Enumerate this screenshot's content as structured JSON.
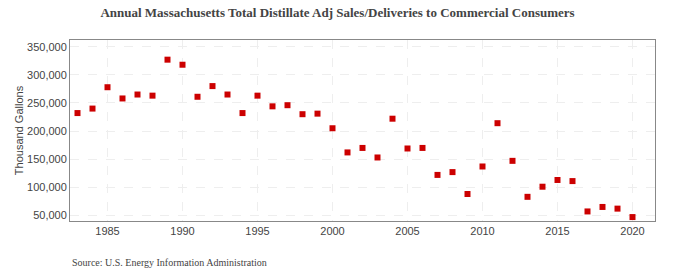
{
  "chart_data": {
    "type": "scatter",
    "title": "Annual Massachusetts Total Distillate Adj Sales/Deliveries to Commercial Consumers",
    "ylabel": "Thousand Gallons",
    "annotations": [
      "Source: U.S. Energy Information Administration"
    ],
    "x": [
      1983,
      1984,
      1985,
      1986,
      1987,
      1988,
      1989,
      1990,
      1991,
      1992,
      1993,
      1994,
      1995,
      1996,
      1997,
      1998,
      1999,
      2000,
      2001,
      2002,
      2003,
      2004,
      2005,
      2006,
      2007,
      2008,
      2009,
      2010,
      2011,
      2012,
      2013,
      2014,
      2015,
      2016,
      2017,
      2018,
      2019,
      2020
    ],
    "values": [
      232000,
      240000,
      278000,
      258000,
      265000,
      263000,
      327000,
      318000,
      261000,
      280000,
      265000,
      232000,
      263000,
      244000,
      246000,
      230000,
      231000,
      205000,
      162000,
      170000,
      153000,
      222000,
      169000,
      170000,
      122000,
      127000,
      88000,
      137000,
      214000,
      147000,
      83000,
      101000,
      113000,
      111000,
      57000,
      65000,
      62000,
      47000
    ],
    "color": "#cc0000",
    "marker": "square",
    "xlim": [
      1982.5,
      2021.5
    ],
    "xticks": [
      1985,
      1990,
      1995,
      2000,
      2005,
      2010,
      2015,
      2020
    ],
    "ylim": [
      40000,
      362000
    ],
    "yticks": [
      {
        "value": 50000,
        "label": "50,000"
      },
      {
        "value": 100000,
        "label": "100,000"
      },
      {
        "value": 150000,
        "label": "150,000"
      },
      {
        "value": 200000,
        "label": "200,000"
      },
      {
        "value": 250000,
        "label": "250,000"
      },
      {
        "value": 300000,
        "label": "300,000"
      },
      {
        "value": 350000,
        "label": "350,000"
      }
    ],
    "grid": true
  }
}
